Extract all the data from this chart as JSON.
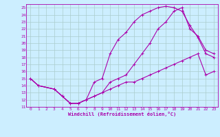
{
  "xlabel": "Windchill (Refroidissement éolien,°C)",
  "bg_color": "#cceeff",
  "line_color": "#aa00aa",
  "grid_color": "#aacccc",
  "xlim": [
    -0.5,
    23.5
  ],
  "ylim": [
    11,
    25.5
  ],
  "xticks": [
    0,
    1,
    2,
    3,
    4,
    5,
    6,
    7,
    8,
    9,
    10,
    11,
    12,
    13,
    14,
    15,
    16,
    17,
    18,
    19,
    20,
    21,
    22,
    23
  ],
  "yticks": [
    11,
    12,
    13,
    14,
    15,
    16,
    17,
    18,
    19,
    20,
    21,
    22,
    23,
    24,
    25
  ],
  "line1_x": [
    0,
    1,
    3,
    4,
    5,
    6,
    7,
    8,
    9,
    10,
    11,
    12,
    13,
    14,
    15,
    16,
    17,
    18,
    19,
    20,
    21,
    22,
    23
  ],
  "line1_y": [
    15,
    14,
    13.5,
    12.5,
    11.5,
    11.5,
    12,
    14.5,
    15,
    18.5,
    20.5,
    21.5,
    23,
    24,
    24.5,
    25,
    25.2,
    25,
    24.5,
    22.5,
    20.8,
    18.5,
    18.0
  ],
  "line2_x": [
    0,
    1,
    3,
    4,
    5,
    6,
    7,
    8,
    9,
    10,
    11,
    12,
    13,
    14,
    15,
    16,
    17,
    18,
    19,
    20,
    21,
    22,
    23
  ],
  "line2_y": [
    15,
    14,
    13.5,
    12.5,
    11.5,
    11.5,
    12,
    12.5,
    13,
    14.5,
    15,
    15.5,
    17,
    18.5,
    20,
    22,
    23,
    24.5,
    25,
    22,
    21,
    19,
    18.5
  ],
  "line3_x": [
    0,
    1,
    3,
    4,
    5,
    6,
    7,
    8,
    9,
    10,
    11,
    12,
    13,
    14,
    15,
    16,
    17,
    18,
    19,
    20,
    21,
    22,
    23
  ],
  "line3_y": [
    15,
    14,
    13.5,
    12.5,
    11.5,
    11.5,
    12,
    12.5,
    13,
    13.5,
    14,
    14.5,
    14.5,
    15,
    15.5,
    16,
    16.5,
    17,
    17.5,
    18,
    18.5,
    15.5,
    16
  ]
}
